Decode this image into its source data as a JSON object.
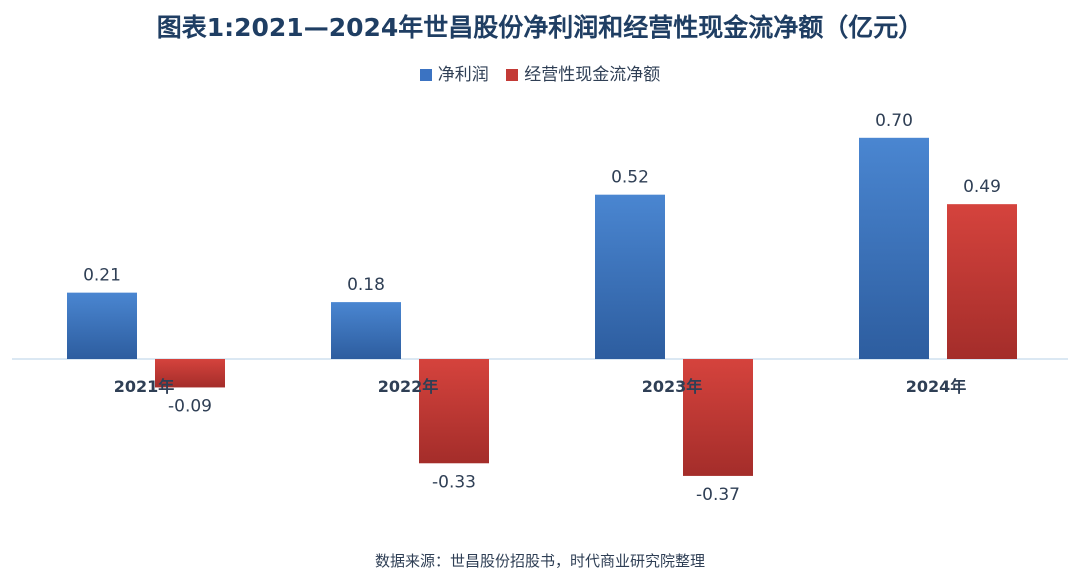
{
  "title": "图表1:2021—2024年世昌股份净利润和经营性现金流净额（亿元）",
  "source_note": "数据来源：世昌股份招股书，时代商业研究院整理",
  "colors": {
    "net_profit": "#3b73c2",
    "op_cash_flow": "#c33a36",
    "axis": "#cfe0ef",
    "text": "#2f3f55"
  },
  "legend": [
    {
      "label": "净利润",
      "color": "#3b73c2"
    },
    {
      "label": "经营性现金流净额",
      "color": "#c33a36"
    }
  ],
  "chart_data": {
    "type": "bar",
    "title": "图表1:2021—2024年世昌股份净利润和经营性现金流净额（亿元）",
    "categories": [
      "2021年",
      "2022年",
      "2023年",
      "2024年"
    ],
    "series": [
      {
        "name": "净利润",
        "values": [
          0.21,
          0.18,
          0.52,
          0.7
        ],
        "labels": [
          "0.21",
          "0.18",
          "0.52",
          "0.70"
        ]
      },
      {
        "name": "经营性现金流净额",
        "values": [
          -0.09,
          -0.33,
          -0.37,
          0.49
        ],
        "labels": [
          "-0.09",
          "-0.33",
          "-0.37",
          "0.49"
        ]
      }
    ],
    "legend_position": "top",
    "grid": false,
    "ylim": [
      -0.4,
      0.8
    ]
  }
}
